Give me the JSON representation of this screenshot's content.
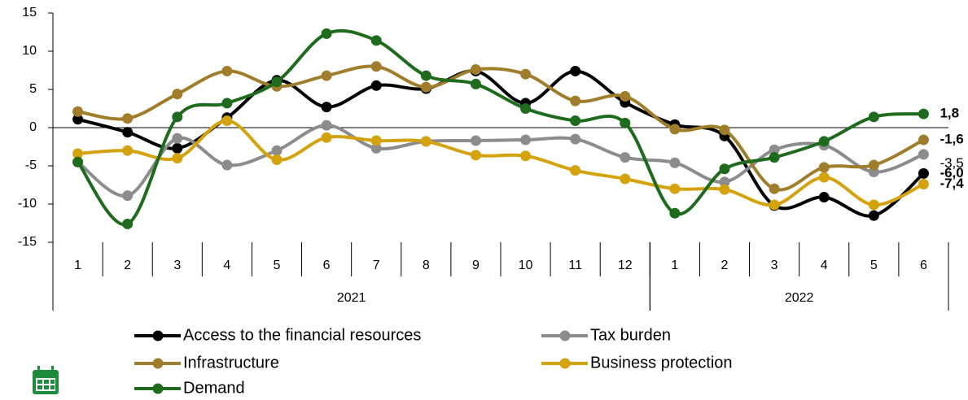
{
  "chart_data": {
    "type": "line",
    "categories": [
      "1",
      "2",
      "3",
      "4",
      "5",
      "6",
      "7",
      "8",
      "9",
      "10",
      "11",
      "12",
      "1",
      "2",
      "3",
      "4",
      "5",
      "6"
    ],
    "groups": [
      {
        "name": "2021",
        "span": 12
      },
      {
        "name": "2022",
        "span": 6
      }
    ],
    "ylim": [
      -15,
      15
    ],
    "yticks": [
      -15,
      -10,
      -5,
      0,
      5,
      10,
      15
    ],
    "series": [
      {
        "name": "Access to the financial resources",
        "color": "#000000",
        "label_color": "#1f3864",
        "values": [
          1.1,
          -0.6,
          -2.7,
          1.3,
          6.2,
          2.7,
          5.5,
          5.1,
          7.4,
          3.2,
          7.4,
          3.3,
          0.4,
          -1.1,
          -10.2,
          -9.1,
          -11.5,
          -6.0
        ],
        "value_labels": [
          null,
          null,
          null,
          null,
          null,
          null,
          null,
          null,
          null,
          null,
          null,
          null,
          null,
          null,
          null,
          null,
          null,
          "-6,0"
        ]
      },
      {
        "name": "Tax burden",
        "color": "#8c8c8c",
        "label_color": "#7f7f7f",
        "values": [
          -4.5,
          -8.9,
          -1.4,
          -4.9,
          -3.0,
          0.3,
          -2.7,
          -1.8,
          -1.7,
          -1.6,
          -1.5,
          -3.9,
          -4.6,
          -7.1,
          -2.9,
          -2.3,
          -5.8,
          -3.5
        ],
        "value_labels": [
          null,
          null,
          null,
          null,
          null,
          null,
          null,
          null,
          null,
          null,
          null,
          null,
          null,
          null,
          null,
          null,
          null,
          "-3,5"
        ]
      },
      {
        "name": "Infrastructure",
        "color": "#a07d2a",
        "label_color": "#a07d2a",
        "values": [
          2.1,
          1.2,
          4.4,
          7.4,
          5.4,
          6.8,
          8.0,
          5.3,
          7.6,
          7.0,
          3.5,
          4.1,
          -0.2,
          -0.3,
          -8.0,
          -5.2,
          -4.9,
          -1.6
        ],
        "value_labels": [
          null,
          null,
          null,
          null,
          null,
          null,
          null,
          null,
          null,
          null,
          null,
          null,
          null,
          null,
          null,
          null,
          null,
          "-1,6"
        ]
      },
      {
        "name": "Business protection",
        "color": "#d4a20c",
        "label_color": "#d4a20c",
        "values": [
          -3.4,
          -3.0,
          -4.0,
          0.9,
          -4.2,
          -1.3,
          -1.7,
          -1.8,
          -3.6,
          -3.7,
          -5.6,
          -6.7,
          -8.0,
          -8.1,
          -10.1,
          -6.5,
          -10.1,
          -7.4
        ],
        "value_labels": [
          null,
          null,
          null,
          null,
          null,
          null,
          null,
          null,
          null,
          null,
          null,
          null,
          null,
          null,
          null,
          null,
          null,
          "-7,4"
        ]
      },
      {
        "name": "Demand",
        "color": "#1e6b1e",
        "label_color": "#1e6b1e",
        "values": [
          -4.5,
          -12.6,
          1.4,
          3.2,
          6.0,
          12.3,
          11.4,
          6.8,
          5.7,
          2.5,
          0.9,
          0.6,
          -11.2,
          -5.4,
          -3.9,
          -1.8,
          1.4,
          1.8
        ],
        "value_labels": [
          null,
          null,
          null,
          null,
          null,
          null,
          null,
          null,
          null,
          null,
          null,
          null,
          null,
          null,
          null,
          null,
          null,
          "1,8"
        ]
      }
    ]
  }
}
